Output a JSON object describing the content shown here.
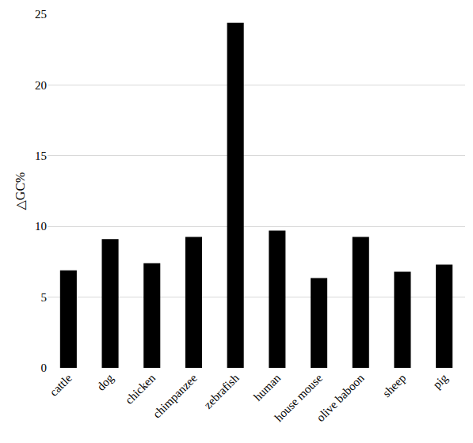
{
  "chart_data": {
    "type": "bar",
    "y_label": "△GC%",
    "categories": [
      "cattle",
      "dog",
      "chicken",
      "chimpanzee",
      "zebrafish",
      "human",
      "house mouse",
      "olive baboon",
      "sheep",
      "pig"
    ],
    "values": [
      6.9,
      9.1,
      7.4,
      9.25,
      24.4,
      9.7,
      6.35,
      9.25,
      6.8,
      7.3
    ],
    "color": "#000000",
    "ylim": [
      0,
      25
    ],
    "yticks": [
      0,
      5,
      10,
      15,
      20,
      25
    ],
    "grid": true
  }
}
